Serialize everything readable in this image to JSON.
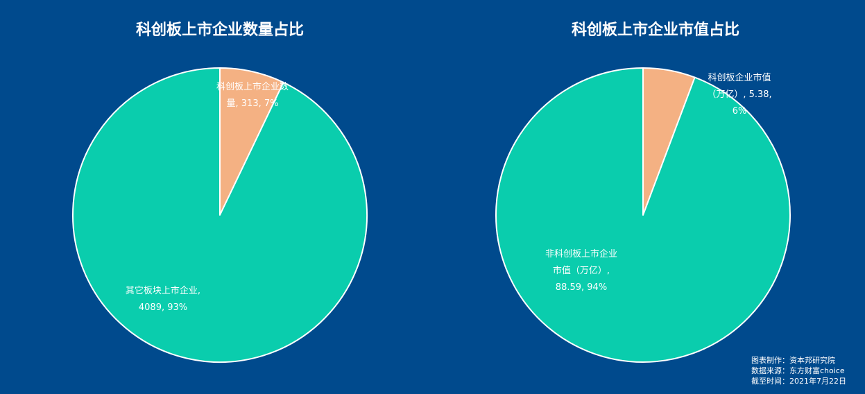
{
  "chart_data": [
    {
      "type": "pie",
      "title": "科创板上市企业数量占比",
      "start_angle": "12 o'clock, clockwise",
      "colors": [
        "#f4b183",
        "#0acdad"
      ],
      "slices": [
        {
          "label_lines": [
            "科创板上市企业数",
            "量, 313, 7%"
          ],
          "value": 313,
          "percent": 7
        },
        {
          "label_lines": [
            "其它板块上市企业,",
            "4089, 93%"
          ],
          "value": 4089,
          "percent": 93
        }
      ]
    },
    {
      "type": "pie",
      "title": "科创板上市企业市值占比",
      "start_angle": "12 o'clock, clockwise",
      "colors": [
        "#f4b183",
        "#0acdad"
      ],
      "slices": [
        {
          "label_lines": [
            "科创板企业市值",
            "（万亿）, 5.38,",
            "6%"
          ],
          "value": 5.38,
          "percent": 6
        },
        {
          "label_lines": [
            "非科创板上市企业",
            "市值（万亿）,",
            "88.59, 94%"
          ],
          "value": 88.59,
          "percent": 94
        }
      ]
    }
  ],
  "footnote": {
    "line1": "图表制作：资本邦研究院",
    "line2": "数据来源：东方财富choice",
    "line3": "截至时间：2021年7月22日"
  }
}
